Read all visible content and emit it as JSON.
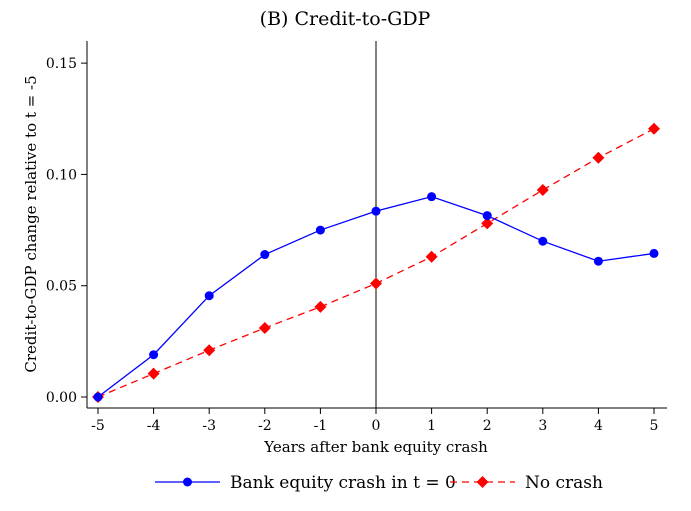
{
  "chart_data": {
    "type": "line",
    "title": "(B)  Credit-to-GDP",
    "xlabel": "Years after bank equity crash",
    "ylabel": "Credit-to-GDP change relative to t = -5",
    "x": [
      -5,
      -4,
      -3,
      -2,
      -1,
      0,
      1,
      2,
      3,
      4,
      5
    ],
    "x_ticks": [
      "-5",
      "-4",
      "-3",
      "-2",
      "-1",
      "0",
      "1",
      "2",
      "3",
      "4",
      "5"
    ],
    "y_ticks": [
      "0.00",
      "0.05",
      "0.10",
      "0.15"
    ],
    "y_tick_values": [
      0.0,
      0.05,
      0.1,
      0.15
    ],
    "xlim": [
      -5,
      5
    ],
    "ylim": [
      0.0,
      0.155
    ],
    "grid": false,
    "vertical_reference_line_x": 0,
    "legend_position": "bottom",
    "series": [
      {
        "name": "Bank equity crash in t = 0",
        "color": "#0000ff",
        "line_style": "solid",
        "marker": "circle",
        "values": [
          0.0,
          0.019,
          0.0455,
          0.064,
          0.075,
          0.0835,
          0.09,
          0.0815,
          0.07,
          0.061,
          0.0645
        ]
      },
      {
        "name": "No crash",
        "color": "#ff0000",
        "line_style": "dashed",
        "marker": "diamond",
        "values": [
          0.0,
          0.0105,
          0.021,
          0.031,
          0.0405,
          0.051,
          0.063,
          0.078,
          0.093,
          0.1075,
          0.1205
        ]
      }
    ]
  }
}
